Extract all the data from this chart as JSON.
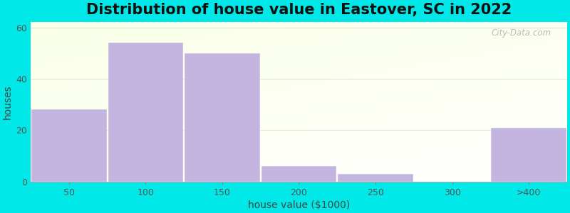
{
  "title": "Distribution of house value in Eastover, SC in 2022",
  "xlabel": "house value ($1000)",
  "ylabel": "houses",
  "bar_labels": [
    "50",
    "100",
    "150",
    "200",
    "250",
    "300",
    ">400"
  ],
  "bar_values": [
    28,
    54,
    50,
    6,
    3,
    0,
    21
  ],
  "bar_color": "#c4b4e0",
  "bar_edgecolor": "#c4b4e0",
  "ylim": [
    0,
    62
  ],
  "yticks": [
    0,
    20,
    40,
    60
  ],
  "outer_bg": "#00e8e8",
  "title_fontsize": 15,
  "axis_label_fontsize": 10,
  "tick_fontsize": 9,
  "watermark_text": "City-Data.com"
}
